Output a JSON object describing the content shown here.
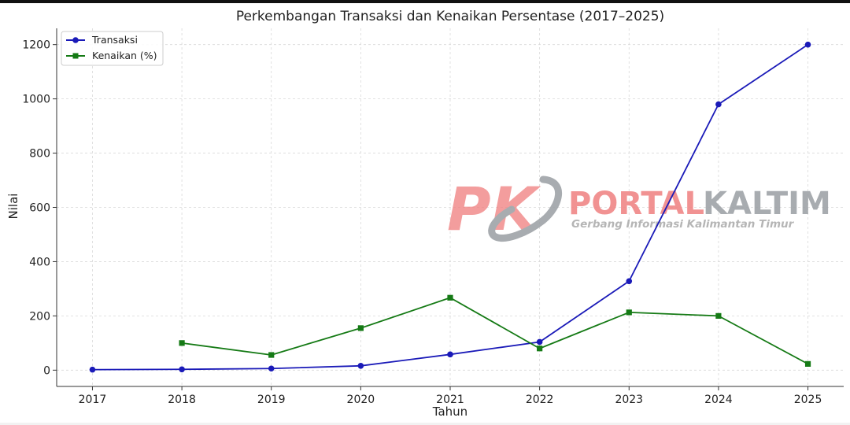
{
  "chart_data": {
    "type": "line",
    "title": "Perkembangan Transaksi dan Kenaikan Persentase (2017–2025)",
    "xlabel": "Tahun",
    "ylabel": "Nilai",
    "x": [
      2017,
      2018,
      2019,
      2020,
      2021,
      2022,
      2023,
      2024,
      2025
    ],
    "xlim": [
      2016.6,
      2025.4
    ],
    "ylim": [
      -60,
      1260
    ],
    "yticks": [
      0,
      200,
      400,
      600,
      800,
      1000,
      1200
    ],
    "grid": true,
    "legend_position": "top-left",
    "series": [
      {
        "name": "Transaksi",
        "color": "#1a1ab8",
        "marker": "circle",
        "x": [
          2017,
          2018,
          2019,
          2020,
          2021,
          2022,
          2023,
          2024,
          2025
        ],
        "values": [
          2,
          3,
          6,
          16,
          58,
          104,
          328,
          980,
          1200
        ]
      },
      {
        "name": "Kenaikan (%)",
        "color": "#157a15",
        "marker": "square",
        "x": [
          2018,
          2019,
          2020,
          2021,
          2022,
          2023,
          2024,
          2025
        ],
        "values": [
          100,
          56,
          155,
          267,
          80,
          213,
          200,
          23
        ]
      }
    ]
  },
  "watermark": {
    "brand_left": "PORTAL",
    "brand_right": "KALTIM",
    "tagline": "Gerbang Informasi Kalimantan Timur",
    "logo_text": "PK",
    "brand_color": "#ef8080",
    "secondary_color": "#9a9ea3"
  }
}
